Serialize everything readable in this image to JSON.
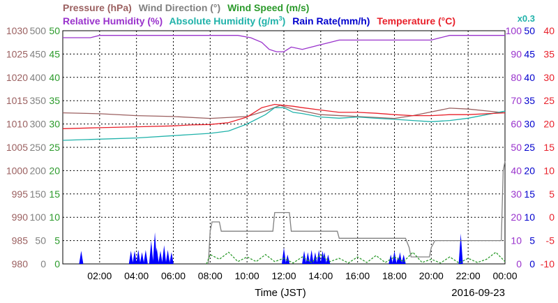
{
  "chart_data": {
    "type": "line",
    "legend_row1": [
      {
        "label": "Pressure (hPa)",
        "color": "#9b6060"
      },
      {
        "label": "Wind Direction (°)",
        "color": "#808080"
      },
      {
        "label": "Wind Speed (m/s)",
        "color": "#2b9a2b"
      }
    ],
    "legend_row2": [
      {
        "label": "Relative Humidity (%)",
        "color": "#9932cc"
      },
      {
        "label": "Absolute Humidity (g/m",
        "color": "#20b2aa"
      },
      {
        "label": "Rain Rate(mm/h)",
        "color": "#0000cd"
      },
      {
        "label": "Temperature (°C)",
        "color": "#e8202a"
      }
    ],
    "abs_humidity_superscript": "3",
    "abs_humidity_suffix": ")",
    "rain_scale_note": "x0.3",
    "xlabel": "Time (JST)",
    "date_label": "2016-09-23",
    "x_ticks": [
      "02:00",
      "04:00",
      "06:00",
      "08:00",
      "10:00",
      "12:00",
      "14:00",
      "16:00",
      "18:00",
      "20:00",
      "22:00",
      "00:00"
    ],
    "x_range_hours": [
      0,
      24
    ],
    "axes": {
      "pressure": {
        "color": "#9b6060",
        "ticks": [
          "980",
          "985",
          "990",
          "995",
          "1000",
          "1005",
          "1010",
          "1015",
          "1020",
          "1025",
          "1030"
        ],
        "range": [
          980,
          1030
        ]
      },
      "wind_direction": {
        "color": "#808080",
        "ticks": [
          "0",
          "50",
          "100",
          "150",
          "200",
          "250",
          "300",
          "350",
          "400",
          "450",
          "500"
        ],
        "range": [
          0,
          500
        ]
      },
      "wind_speed": {
        "color": "#2b9a2b",
        "ticks": [
          "0",
          "5",
          "10",
          "15",
          "20",
          "25",
          "30",
          "35",
          "40",
          "45",
          "50"
        ],
        "range": [
          0,
          50
        ]
      },
      "relative_humidity": {
        "color": "#9932cc",
        "ticks": [
          "0",
          "10",
          "20",
          "30",
          "40",
          "50",
          "60",
          "70",
          "80",
          "90",
          "100"
        ],
        "range": [
          0,
          100
        ]
      },
      "rain_rate": {
        "color": "#0000cd",
        "ticks": [
          "0",
          "5",
          "10",
          "15",
          "20",
          "25",
          "30",
          "35",
          "40",
          "45",
          "50"
        ],
        "range": [
          0,
          50
        ]
      },
      "temperature": {
        "color": "#e8202a",
        "ticks": [
          "-10",
          "-5",
          "0",
          "5",
          "10",
          "15",
          "20",
          "25",
          "30",
          "35",
          "40"
        ],
        "range": [
          -10,
          40
        ]
      }
    },
    "series": [
      {
        "name": "Pressure (hPa)",
        "axis": "pressure",
        "color": "#9b6060",
        "points": [
          [
            0,
            1012.4
          ],
          [
            2,
            1012.2
          ],
          [
            4,
            1011.8
          ],
          [
            6,
            1011.6
          ],
          [
            8,
            1011.2
          ],
          [
            10,
            1011.6
          ],
          [
            11,
            1012.8
          ],
          [
            11.8,
            1014.0
          ],
          [
            12.5,
            1013.2
          ],
          [
            14,
            1012.0
          ],
          [
            16,
            1011.6
          ],
          [
            18,
            1011.2
          ],
          [
            19,
            1011.8
          ],
          [
            20,
            1012.6
          ],
          [
            21,
            1013.4
          ],
          [
            22,
            1013.2
          ],
          [
            23,
            1012.8
          ],
          [
            24,
            1012.4
          ]
        ]
      },
      {
        "name": "Wind Direction (°)",
        "axis": "wind_direction",
        "color": "#808080",
        "points": [
          [
            7.9,
            0
          ],
          [
            8.0,
            70
          ],
          [
            8.1,
            90
          ],
          [
            8.5,
            90
          ],
          [
            8.6,
            70
          ],
          [
            11.4,
            70
          ],
          [
            11.5,
            110
          ],
          [
            12.3,
            110
          ],
          [
            12.4,
            70
          ],
          [
            14.9,
            70
          ],
          [
            15.0,
            55
          ],
          [
            18.6,
            55
          ],
          [
            18.8,
            35
          ],
          [
            18.9,
            15
          ],
          [
            19.9,
            15
          ],
          [
            20.0,
            35
          ],
          [
            20.2,
            50
          ],
          [
            23.8,
            50
          ],
          [
            23.9,
            200
          ],
          [
            24,
            220
          ]
        ]
      },
      {
        "name": "Wind Speed (m/s)",
        "axis": "wind_speed",
        "color": "#2b9a2b",
        "points": [
          [
            7.8,
            0
          ],
          [
            8.0,
            2
          ],
          [
            8.5,
            1
          ],
          [
            9.0,
            2.5
          ],
          [
            9.5,
            0.5
          ],
          [
            10,
            1.5
          ],
          [
            10.5,
            0.5
          ],
          [
            11,
            2
          ],
          [
            11.5,
            0.5
          ],
          [
            12,
            1.2
          ],
          [
            12.5,
            0.2
          ],
          [
            13,
            1.5
          ],
          [
            13.5,
            0.3
          ],
          [
            14,
            2
          ],
          [
            14.5,
            0.5
          ],
          [
            15,
            1.2
          ],
          [
            15.5,
            0.2
          ],
          [
            16,
            1.5
          ],
          [
            16.5,
            0.3
          ],
          [
            17,
            1.8
          ],
          [
            17.5,
            0.3
          ],
          [
            18,
            1.5
          ],
          [
            18.5,
            0.5
          ],
          [
            19,
            2.5
          ],
          [
            19.5,
            0.3
          ],
          [
            20,
            1
          ],
          [
            20.5,
            0.2
          ],
          [
            21,
            1.5
          ],
          [
            21.5,
            0.2
          ],
          [
            22,
            1.2
          ],
          [
            22.5,
            0.3
          ],
          [
            23,
            1
          ],
          [
            23.5,
            2.5
          ],
          [
            24,
            0.5
          ]
        ]
      },
      {
        "name": "Relative Humidity (%)",
        "axis": "relative_humidity",
        "color": "#9932cc",
        "points": [
          [
            0,
            97
          ],
          [
            1.5,
            97
          ],
          [
            2,
            98
          ],
          [
            8,
            98
          ],
          [
            9.5,
            98
          ],
          [
            10.2,
            97
          ],
          [
            10.8,
            95
          ],
          [
            11.2,
            92
          ],
          [
            11.6,
            91
          ],
          [
            12.0,
            91
          ],
          [
            12.4,
            93
          ],
          [
            13.0,
            92
          ],
          [
            13.5,
            93
          ],
          [
            14.0,
            94
          ],
          [
            14.5,
            95
          ],
          [
            15.0,
            96
          ],
          [
            16.0,
            96
          ],
          [
            20,
            96
          ],
          [
            20.5,
            97
          ],
          [
            21,
            98
          ],
          [
            24,
            98
          ]
        ]
      },
      {
        "name": "Absolute Humidity (g/m³)",
        "axis": "relative_humidity",
        "color": "#20b2aa",
        "points": [
          [
            0,
            53
          ],
          [
            2,
            53.5
          ],
          [
            4,
            54
          ],
          [
            6,
            55
          ],
          [
            7,
            55.5
          ],
          [
            8,
            56
          ],
          [
            9,
            57
          ],
          [
            10,
            60
          ],
          [
            11,
            64
          ],
          [
            11.5,
            67
          ],
          [
            12,
            67
          ],
          [
            12.5,
            65
          ],
          [
            13,
            64.5
          ],
          [
            14,
            63
          ],
          [
            15,
            62.5
          ],
          [
            16,
            63
          ],
          [
            17,
            62.5
          ],
          [
            18,
            62
          ],
          [
            19,
            61.5
          ],
          [
            20,
            61
          ],
          [
            21,
            61.5
          ],
          [
            22,
            62.5
          ],
          [
            23,
            64
          ],
          [
            24,
            65.5
          ]
        ]
      },
      {
        "name": "Temperature (°C)",
        "axis": "temperature",
        "color": "#e8202a",
        "points": [
          [
            0,
            19
          ],
          [
            2,
            19.2
          ],
          [
            4,
            19.4
          ],
          [
            6,
            19.6
          ],
          [
            7,
            19.8
          ],
          [
            8,
            19.9
          ],
          [
            9,
            20.3
          ],
          [
            10,
            21.5
          ],
          [
            10.8,
            23.5
          ],
          [
            11.5,
            24.2
          ],
          [
            12,
            24
          ],
          [
            12.5,
            23.8
          ],
          [
            13,
            23.5
          ],
          [
            14,
            23
          ],
          [
            15,
            22.5
          ],
          [
            16,
            22.5
          ],
          [
            17,
            22.3
          ],
          [
            18,
            22
          ],
          [
            19,
            21.8
          ],
          [
            20,
            21.8
          ],
          [
            21,
            22
          ],
          [
            22,
            22
          ],
          [
            23,
            22.2
          ],
          [
            24,
            22.4
          ]
        ]
      }
    ],
    "rain_bars": [
      [
        1.0,
        2.8
      ],
      [
        3.7,
        2.8
      ],
      [
        3.9,
        2.8
      ],
      [
        4.1,
        3.0
      ],
      [
        4.3,
        2.5
      ],
      [
        4.5,
        3.0
      ],
      [
        4.8,
        5.0
      ],
      [
        5.0,
        6.8
      ],
      [
        5.1,
        3.5
      ],
      [
        5.3,
        2.8
      ],
      [
        5.5,
        4.0
      ],
      [
        5.7,
        3.0
      ],
      [
        5.9,
        2.5
      ],
      [
        12.0,
        3.5
      ],
      [
        12.2,
        2.0
      ],
      [
        13.1,
        2.8
      ],
      [
        13.3,
        2.5
      ],
      [
        13.5,
        3.0
      ],
      [
        13.7,
        2.5
      ],
      [
        13.9,
        3.0
      ],
      [
        14.1,
        2.8
      ],
      [
        14.2,
        2.5
      ],
      [
        14.4,
        2.0
      ],
      [
        17.8,
        2.0
      ],
      [
        18.0,
        2.8
      ],
      [
        18.2,
        1.5
      ],
      [
        18.3,
        2.5
      ],
      [
        18.5,
        2.0
      ],
      [
        21.6,
        6.5
      ]
    ]
  }
}
